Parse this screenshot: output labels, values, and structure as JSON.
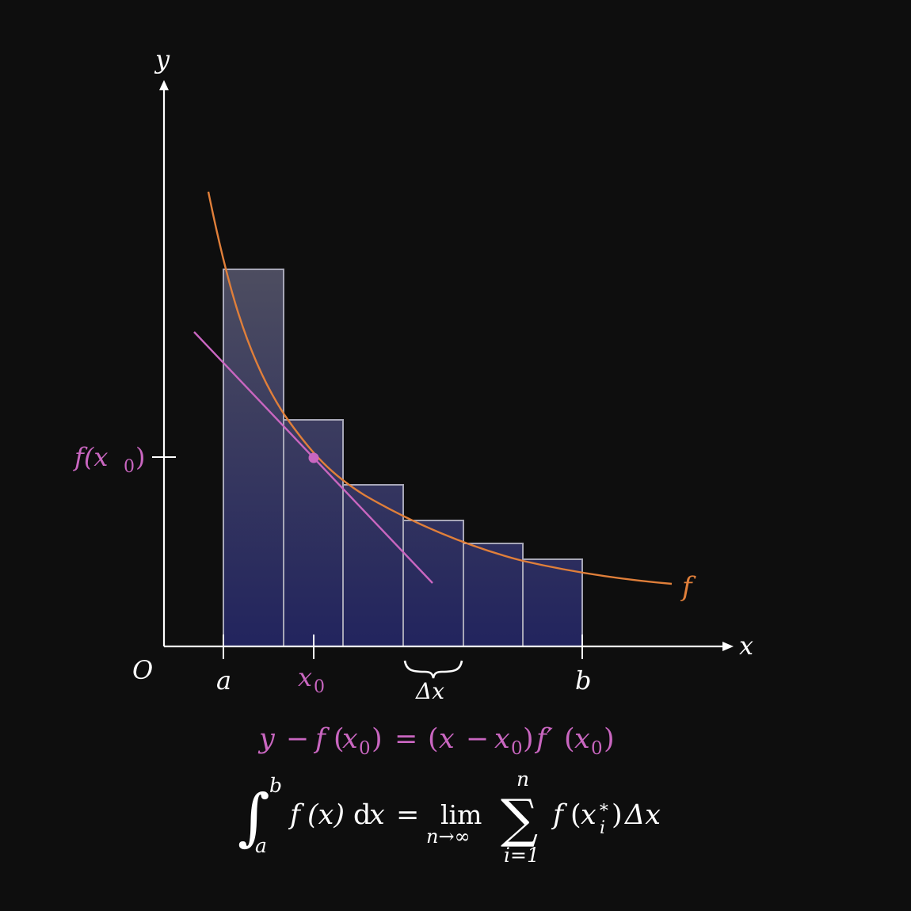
{
  "colors": {
    "background": "#0e0e0e",
    "axis": "#ffffff",
    "curve": "#e07f3a",
    "tangent": "#c966c0",
    "bar_fill_top": "#4b4b5e",
    "bar_fill_bottom": "#242660",
    "bar_stroke": "#a7a7b7",
    "formula_tangent": "#c966c0",
    "formula_integral": "#ffffff"
  },
  "labels": {
    "y_axis": "y",
    "x_axis": "x",
    "origin": "O",
    "a": "a",
    "b": "b",
    "x0": "x",
    "x0_sub": "0",
    "delta_x": "Δx",
    "f_x0": "f(x",
    "f_x0_sub": "0",
    "f_x0_close": ")",
    "curve_name": "f"
  },
  "tangent_equation": {
    "y": "y",
    "minus1": "−",
    "f": "f",
    "open1": "(",
    "x1": "x",
    "sub1": "0",
    "close1": ")",
    "eq": "=",
    "open2": "(",
    "x2": "x",
    "minus2": "−",
    "x3": "x",
    "sub2": "0",
    "close2": ")",
    "fprime": "f′",
    "open3": "(",
    "x4": "x",
    "sub3": "0",
    "close3": ")"
  },
  "integral_equation": {
    "integral": "∫",
    "upper": "b",
    "lower": "a",
    "integrand_f": "f",
    "integrand_args": "(x)",
    "d": "d",
    "dx_x": "x",
    "eq": "=",
    "lim": "lim",
    "lim_sub": "n→∞",
    "sum": "∑",
    "sum_upper": "n",
    "sum_lower": "i=1",
    "term_f": "f",
    "term_open": "(",
    "term_x": "x",
    "term_sup": "∗",
    "term_sub": "i",
    "term_close": ")",
    "term_delta": "Δx"
  },
  "chart_data": {
    "type": "diagram",
    "function": "decreasing curve f",
    "rectangles": {
      "count": 6,
      "relative_heights": [
        1.0,
        0.6,
        0.43,
        0.335,
        0.272,
        0.233
      ]
    },
    "tangent_point": "x0",
    "tick_labels": [
      "a",
      "x0",
      "Δx",
      "b"
    ]
  }
}
